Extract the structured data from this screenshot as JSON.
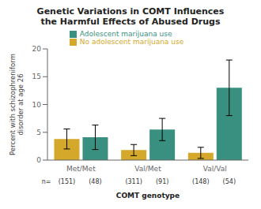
{
  "chart_data": {
    "type": "bar",
    "title": "Genetic Variations in COMT Influences\nthe Harmful Effects of Abused Drugs",
    "xlabel": "COMT genotype",
    "ylabel": "Percent with schizophreniform\ndisorder at age 26",
    "categories": [
      "Met/Met",
      "Val/Met",
      "Val/Val"
    ],
    "series": [
      {
        "name": "No adolescent marijuana use",
        "color": "#d4a82a",
        "values": [
          3.8,
          1.8,
          1.3
        ],
        "errors": [
          1.8,
          1.0,
          1.0
        ],
        "n_labels": [
          "(151)",
          "(311)",
          "(148)"
        ]
      },
      {
        "name": "Adolescent marijuana use",
        "color": "#3a9080",
        "values": [
          4.1,
          5.5,
          13.0
        ],
        "errors": [
          2.2,
          2.0,
          5.0
        ],
        "n_labels": [
          "(48)",
          "(91)",
          "(54)"
        ]
      }
    ],
    "annotation": "n=",
    "ylim": [
      0,
      20
    ],
    "yticks": [
      0,
      5,
      10,
      15,
      20
    ],
    "grid": false,
    "legend": "top"
  }
}
